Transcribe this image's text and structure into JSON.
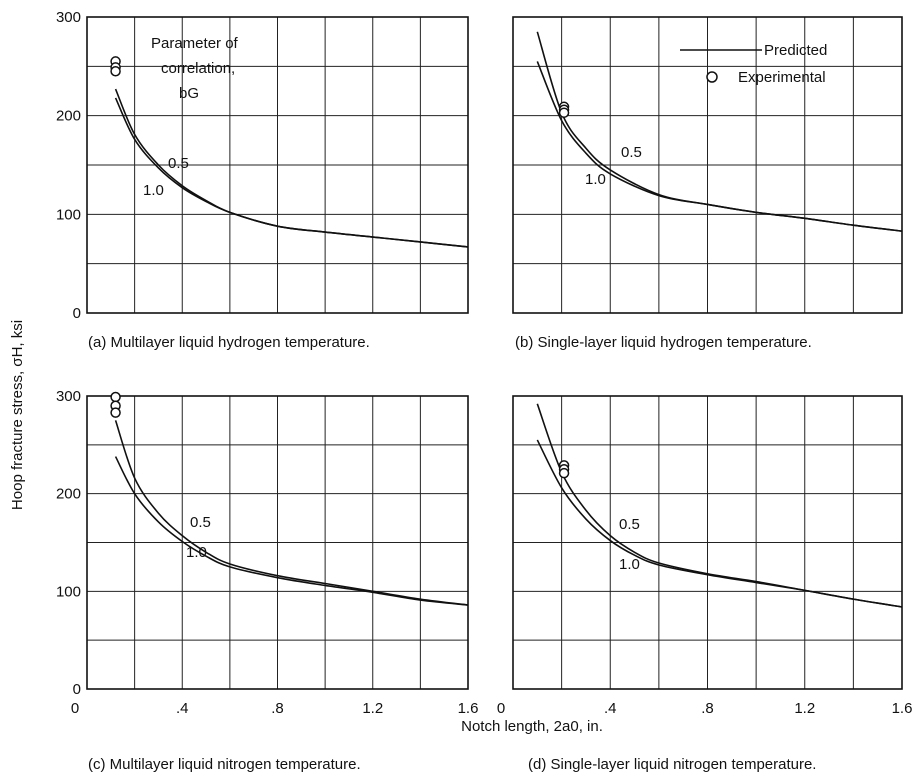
{
  "y_axis_title": "Hoop fracture stress, σH, ksi",
  "x_axis_title": "Notch length, 2a0, in.",
  "legend": {
    "predicted": "Predicted",
    "experimental": "Experimental",
    "placement": "top-right of panel (b)"
  },
  "chart_data": [
    {
      "type": "line",
      "panel": "a",
      "caption": "(a) Multilayer liquid hydrogen temperature.",
      "xlim": [
        0,
        1.6
      ],
      "ylim": [
        0,
        300
      ],
      "grid": true,
      "x_ticks": [],
      "y_ticks": [
        "0",
        "100",
        "200",
        "300"
      ],
      "annotation_text": [
        "Parameter of",
        "correlation,",
        "bG"
      ],
      "series": [
        {
          "name": "0.5",
          "x": [
            0.12,
            0.2,
            0.3,
            0.4,
            0.5,
            0.6,
            0.8,
            1.0,
            1.2,
            1.4,
            1.6
          ],
          "y": [
            218,
            176,
            147,
            127,
            113,
            102,
            88,
            82,
            77,
            72,
            67
          ]
        },
        {
          "name": "1.0",
          "x": [
            0.12,
            0.2,
            0.3,
            0.4,
            0.5,
            0.6,
            0.8,
            1.0,
            1.2,
            1.4,
            1.6
          ],
          "y": [
            227,
            181,
            150,
            129,
            114,
            102,
            88,
            82,
            77,
            72,
            67
          ]
        }
      ],
      "experimental": {
        "x": [
          0.12,
          0.12,
          0.12
        ],
        "y": [
          255,
          249,
          245
        ]
      }
    },
    {
      "type": "line",
      "panel": "b",
      "caption": "(b) Single-layer liquid hydrogen temperature.",
      "xlim": [
        0,
        1.6
      ],
      "ylim": [
        0,
        300
      ],
      "grid": true,
      "x_ticks": [],
      "y_ticks": [],
      "series": [
        {
          "name": "0.5",
          "x": [
            0.1,
            0.2,
            0.3,
            0.4,
            0.6,
            0.8,
            1.0,
            1.2,
            1.4,
            1.6
          ],
          "y": [
            285,
            203,
            167,
            145,
            120,
            110,
            102,
            96,
            89,
            83
          ]
        },
        {
          "name": "1.0",
          "x": [
            0.1,
            0.2,
            0.3,
            0.4,
            0.6,
            0.8,
            1.0,
            1.2,
            1.4,
            1.6
          ],
          "y": [
            255,
            195,
            162,
            141,
            119,
            110,
            102,
            96,
            89,
            83
          ]
        }
      ],
      "experimental": {
        "x": [
          0.21,
          0.21,
          0.21
        ],
        "y": [
          209,
          206,
          203
        ]
      }
    },
    {
      "type": "line",
      "panel": "c",
      "caption": "(c) Multilayer liquid nitrogen temperature.",
      "xlim": [
        0,
        1.6
      ],
      "ylim": [
        0,
        300
      ],
      "grid": true,
      "x_ticks": [
        "0",
        ".4",
        ".8",
        "1.2",
        "1.6"
      ],
      "y_ticks": [
        "0",
        "100",
        "200",
        "300"
      ],
      "series": [
        {
          "name": "0.5",
          "x": [
            0.12,
            0.2,
            0.3,
            0.4,
            0.5,
            0.6,
            0.8,
            1.0,
            1.2,
            1.4,
            1.6
          ],
          "y": [
            275,
            216,
            180,
            157,
            140,
            128,
            116,
            108,
            100,
            92,
            86
          ]
        },
        {
          "name": "1.0",
          "x": [
            0.12,
            0.2,
            0.3,
            0.4,
            0.5,
            0.6,
            0.8,
            1.0,
            1.2,
            1.4,
            1.6
          ],
          "y": [
            238,
            200,
            171,
            151,
            136,
            125,
            114,
            106,
            99,
            91,
            86
          ]
        }
      ],
      "experimental": {
        "x": [
          0.12,
          0.12,
          0.12
        ],
        "y": [
          299,
          290,
          283
        ]
      }
    },
    {
      "type": "line",
      "panel": "d",
      "caption": "(d) Single-layer liquid nitrogen temperature.",
      "xlim": [
        0,
        1.6
      ],
      "ylim": [
        0,
        300
      ],
      "grid": true,
      "x_ticks": [
        "0",
        ".4",
        ".8",
        "1.2",
        "1.6"
      ],
      "y_ticks": [],
      "series": [
        {
          "name": "0.5",
          "x": [
            0.1,
            0.2,
            0.3,
            0.4,
            0.5,
            0.6,
            0.8,
            1.0,
            1.2,
            1.4,
            1.6
          ],
          "y": [
            292,
            222,
            183,
            157,
            140,
            129,
            118,
            110,
            101,
            92,
            84
          ]
        },
        {
          "name": "1.0",
          "x": [
            0.1,
            0.2,
            0.3,
            0.4,
            0.5,
            0.6,
            0.8,
            1.0,
            1.2,
            1.4,
            1.6
          ],
          "y": [
            255,
            206,
            174,
            152,
            137,
            127,
            117,
            109,
            101,
            92,
            84
          ]
        }
      ],
      "experimental": {
        "x": [
          0.21,
          0.21,
          0.21
        ],
        "y": [
          229,
          225,
          221
        ]
      }
    }
  ]
}
